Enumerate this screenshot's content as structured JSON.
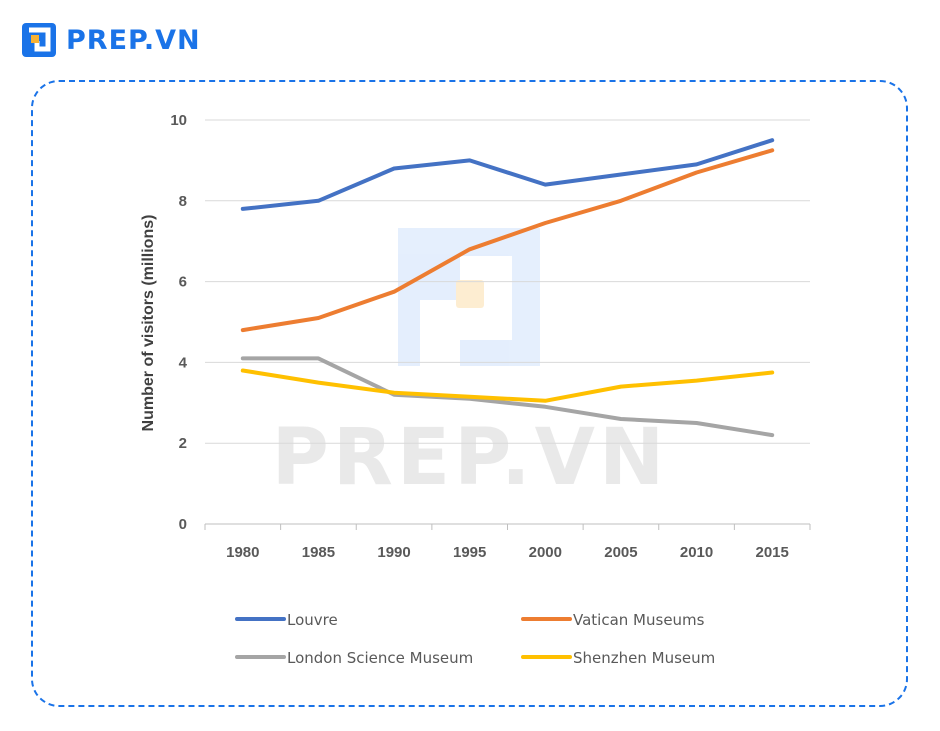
{
  "brand": {
    "name": "PREP.VN",
    "watermark": "PREP.VN",
    "icon": "prep-logo-icon",
    "color": "#1a73e8"
  },
  "chart_data": {
    "type": "line",
    "title": "",
    "xlabel": "",
    "ylabel": "Number of visitors (millions)",
    "categories": [
      "1980",
      "1985",
      "1990",
      "1995",
      "2000",
      "2005",
      "2010",
      "2015"
    ],
    "ylim": [
      0,
      10
    ],
    "yticks": [
      0,
      2,
      4,
      6,
      8,
      10
    ],
    "grid": true,
    "legend_position": "bottom",
    "series": [
      {
        "name": "Louvre",
        "color": "#4472c4",
        "values": [
          7.8,
          8.0,
          8.8,
          9.0,
          8.4,
          8.65,
          8.9,
          9.5
        ]
      },
      {
        "name": "Vatican Museums",
        "color": "#ed7d31",
        "values": [
          4.8,
          5.1,
          5.75,
          6.8,
          7.45,
          8.0,
          8.7,
          9.25
        ]
      },
      {
        "name": "London Science Museum",
        "color": "#a5a5a5",
        "values": [
          4.1,
          4.1,
          3.2,
          3.1,
          2.9,
          2.6,
          2.5,
          2.2
        ]
      },
      {
        "name": "Shenzhen Museum",
        "color": "#ffc000",
        "values": [
          3.8,
          3.5,
          3.25,
          3.15,
          3.05,
          3.4,
          3.55,
          3.75
        ]
      }
    ]
  }
}
